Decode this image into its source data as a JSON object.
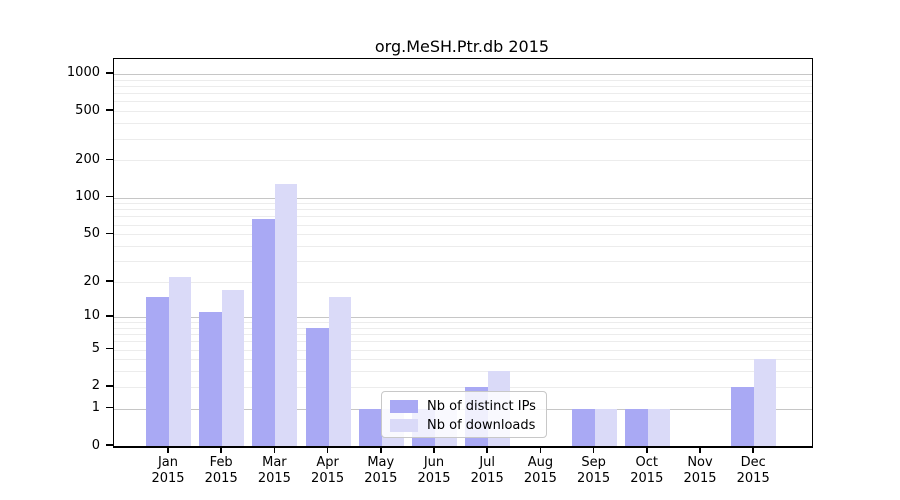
{
  "title": "org.MeSH.Ptr.db 2015",
  "colors": {
    "ips_bar": "#a9a9f4",
    "downloads_bar": "#dadaf8",
    "grid_major": "#c6c6c6",
    "grid_minor": "#ececec",
    "spine": "#000000",
    "legend_border": "#c8c8c8"
  },
  "legend": {
    "items": [
      {
        "label": "Nb of distinct IPs",
        "color_key": "ips_bar"
      },
      {
        "label": "Nb of downloads",
        "color_key": "downloads_bar"
      }
    ]
  },
  "y_axis": {
    "tick_labels": [
      "0",
      "1",
      "2",
      "5",
      "10",
      "20",
      "50",
      "100",
      "200",
      "500",
      "1000"
    ],
    "tick_values": [
      0,
      1,
      2,
      5,
      10,
      20,
      50,
      100,
      200,
      500,
      1000
    ],
    "major_grid_values": [
      1,
      10,
      100,
      1000
    ],
    "minor_grid_values": [
      2,
      3,
      4,
      5,
      6,
      7,
      8,
      9,
      20,
      30,
      40,
      50,
      60,
      70,
      80,
      90,
      200,
      300,
      400,
      500,
      600,
      700,
      800,
      900
    ]
  },
  "x_axis": {
    "categories": [
      {
        "month": "Jan",
        "year": "2015"
      },
      {
        "month": "Feb",
        "year": "2015"
      },
      {
        "month": "Mar",
        "year": "2015"
      },
      {
        "month": "Apr",
        "year": "2015"
      },
      {
        "month": "May",
        "year": "2015"
      },
      {
        "month": "Jun",
        "year": "2015"
      },
      {
        "month": "Jul",
        "year": "2015"
      },
      {
        "month": "Aug",
        "year": "2015"
      },
      {
        "month": "Sep",
        "year": "2015"
      },
      {
        "month": "Oct",
        "year": "2015"
      },
      {
        "month": "Nov",
        "year": "2015"
      },
      {
        "month": "Dec",
        "year": "2015"
      }
    ]
  },
  "chart_data": {
    "type": "bar",
    "title": "org.MeSH.Ptr.db 2015",
    "categories": [
      "Jan 2015",
      "Feb 2015",
      "Mar 2015",
      "Apr 2015",
      "May 2015",
      "Jun 2015",
      "Jul 2015",
      "Aug 2015",
      "Sep 2015",
      "Oct 2015",
      "Nov 2015",
      "Dec 2015"
    ],
    "series": [
      {
        "name": "Nb of distinct IPs",
        "color": "#a9a9f4",
        "values": [
          15,
          11,
          67,
          8,
          1,
          1,
          2,
          0,
          1,
          1,
          0,
          2
        ]
      },
      {
        "name": "Nb of downloads",
        "color": "#dadaf8",
        "values": [
          22,
          17,
          130,
          15,
          1,
          1,
          3,
          0,
          1,
          1,
          0,
          4
        ]
      }
    ],
    "xlabel": "",
    "ylabel": "",
    "y_scale": "log10(1+x)",
    "y_tick_values": [
      0,
      1,
      2,
      5,
      10,
      20,
      50,
      100,
      200,
      500,
      1000
    ],
    "ylim_top": 1300,
    "grid": true,
    "legend_position": "lower center-left inside plot"
  }
}
